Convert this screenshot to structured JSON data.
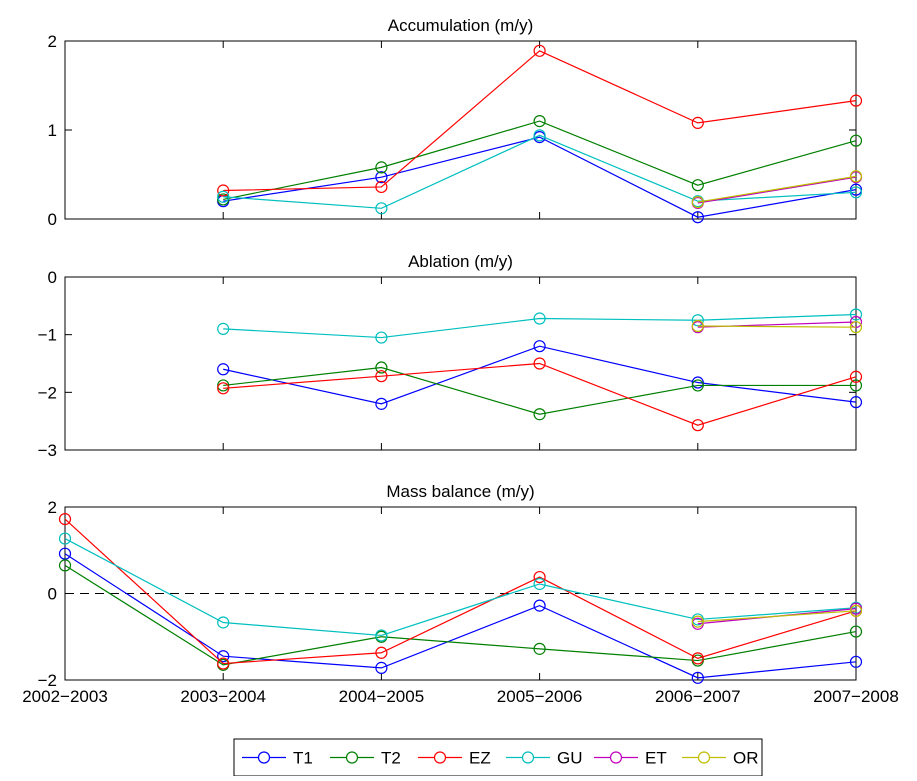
{
  "x_categories": [
    "2002−2003",
    "2003−2004",
    "2004−2005",
    "2005−2006",
    "2006−2007",
    "2007−2008"
  ],
  "legend": [
    {
      "name": "T1",
      "color": "#0000ff"
    },
    {
      "name": "T2",
      "color": "#008000"
    },
    {
      "name": "EZ",
      "color": "#ff0000"
    },
    {
      "name": "GU",
      "color": "#00bfbf"
    },
    {
      "name": "ET",
      "color": "#bf00bf"
    },
    {
      "name": "OR",
      "color": "#bfbf00"
    }
  ],
  "chart_data": [
    {
      "type": "line",
      "title": "Accumulation (m/y)",
      "xlabel": "",
      "ylabel": "",
      "ylim": [
        0,
        2
      ],
      "yticks": [
        0,
        1,
        2
      ],
      "show_xticklabels": false,
      "series": [
        {
          "name": "T1",
          "color": "#0000ff",
          "values": [
            null,
            0.2,
            0.47,
            0.92,
            0.02,
            0.33
          ]
        },
        {
          "name": "T2",
          "color": "#008000",
          "values": [
            null,
            0.22,
            0.58,
            1.1,
            0.38,
            0.88
          ]
        },
        {
          "name": "EZ",
          "color": "#ff0000",
          "values": [
            null,
            0.32,
            0.36,
            1.89,
            1.08,
            1.33
          ]
        },
        {
          "name": "GU",
          "color": "#00bfbf",
          "values": [
            null,
            0.25,
            0.12,
            0.94,
            0.2,
            0.3
          ]
        },
        {
          "name": "ET",
          "color": "#bf00bf",
          "values": [
            null,
            null,
            null,
            null,
            0.18,
            0.47
          ]
        },
        {
          "name": "OR",
          "color": "#bfbf00",
          "values": [
            null,
            null,
            null,
            null,
            0.19,
            0.48
          ]
        }
      ]
    },
    {
      "type": "line",
      "title": "Ablation (m/y)",
      "xlabel": "",
      "ylabel": "",
      "ylim": [
        -3,
        0
      ],
      "yticks": [
        -3,
        -2,
        -1,
        0
      ],
      "show_xticklabels": false,
      "series": [
        {
          "name": "T1",
          "color": "#0000ff",
          "values": [
            null,
            -1.6,
            -2.2,
            -1.2,
            -1.83,
            -2.17
          ]
        },
        {
          "name": "T2",
          "color": "#008000",
          "values": [
            null,
            -1.88,
            -1.57,
            -2.38,
            -1.88,
            -1.88
          ]
        },
        {
          "name": "EZ",
          "color": "#ff0000",
          "values": [
            null,
            -1.93,
            -1.72,
            -1.5,
            -2.57,
            -1.73
          ]
        },
        {
          "name": "GU",
          "color": "#00bfbf",
          "values": [
            null,
            -0.9,
            -1.05,
            -0.72,
            -0.75,
            -0.65
          ]
        },
        {
          "name": "ET",
          "color": "#bf00bf",
          "values": [
            null,
            null,
            null,
            null,
            -0.87,
            -0.78
          ]
        },
        {
          "name": "OR",
          "color": "#bfbf00",
          "values": [
            null,
            null,
            null,
            null,
            -0.85,
            -0.87
          ]
        }
      ]
    },
    {
      "type": "line",
      "title": "Mass balance (m/y)",
      "xlabel": "",
      "ylabel": "",
      "ylim": [
        -2,
        2
      ],
      "yticks": [
        -2,
        0,
        2
      ],
      "show_xticklabels": true,
      "zero_line": true,
      "series": [
        {
          "name": "T1",
          "color": "#0000ff",
          "values": [
            0.92,
            -1.45,
            -1.72,
            -0.28,
            -1.95,
            -1.58
          ]
        },
        {
          "name": "T2",
          "color": "#008000",
          "values": [
            0.65,
            -1.65,
            -1.0,
            -1.28,
            -1.55,
            -0.88
          ]
        },
        {
          "name": "EZ",
          "color": "#ff0000",
          "values": [
            1.72,
            -1.62,
            -1.37,
            0.38,
            -1.5,
            -0.4
          ]
        },
        {
          "name": "GU",
          "color": "#00bfbf",
          "values": [
            1.27,
            -0.67,
            -0.97,
            0.22,
            -0.6,
            -0.33
          ]
        },
        {
          "name": "ET",
          "color": "#bf00bf",
          "values": [
            null,
            null,
            null,
            null,
            -0.7,
            -0.35
          ]
        },
        {
          "name": "OR",
          "color": "#bfbf00",
          "values": [
            null,
            null,
            null,
            null,
            -0.65,
            -0.4
          ]
        }
      ]
    }
  ]
}
